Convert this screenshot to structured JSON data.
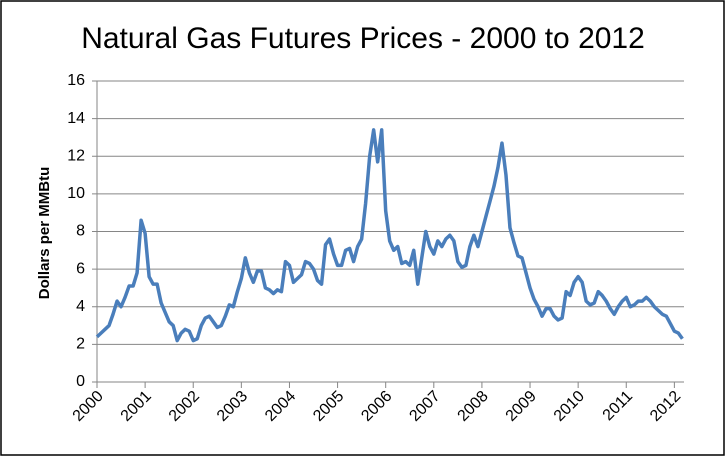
{
  "chart_data": {
    "type": "line",
    "title": "Natural Gas Futures Prices - 2000 to 2012",
    "y_label": "Dollars per MMBtu",
    "color": "#4a7ebb",
    "x": [
      2000,
      2000.083,
      2000.167,
      2000.25,
      2000.333,
      2000.417,
      2000.5,
      2000.583,
      2000.667,
      2000.75,
      2000.833,
      2000.917,
      2001,
      2001.083,
      2001.167,
      2001.25,
      2001.333,
      2001.417,
      2001.5,
      2001.583,
      2001.667,
      2001.75,
      2001.833,
      2001.917,
      2002,
      2002.083,
      2002.167,
      2002.25,
      2002.333,
      2002.417,
      2002.5,
      2002.583,
      2002.667,
      2002.75,
      2002.833,
      2002.917,
      2003,
      2003.083,
      2003.167,
      2003.25,
      2003.333,
      2003.417,
      2003.5,
      2003.583,
      2003.667,
      2003.75,
      2003.833,
      2003.917,
      2004,
      2004.083,
      2004.167,
      2004.25,
      2004.333,
      2004.417,
      2004.5,
      2004.583,
      2004.667,
      2004.75,
      2004.833,
      2004.917,
      2005,
      2005.083,
      2005.167,
      2005.25,
      2005.333,
      2005.417,
      2005.5,
      2005.583,
      2005.667,
      2005.75,
      2005.833,
      2005.917,
      2006,
      2006.083,
      2006.167,
      2006.25,
      2006.333,
      2006.417,
      2006.5,
      2006.583,
      2006.667,
      2006.75,
      2006.833,
      2006.917,
      2007,
      2007.083,
      2007.167,
      2007.25,
      2007.333,
      2007.417,
      2007.5,
      2007.583,
      2007.667,
      2007.75,
      2007.833,
      2007.917,
      2008,
      2008.083,
      2008.167,
      2008.25,
      2008.333,
      2008.417,
      2008.5,
      2008.583,
      2008.667,
      2008.75,
      2008.833,
      2008.917,
      2009,
      2009.083,
      2009.167,
      2009.25,
      2009.333,
      2009.417,
      2009.5,
      2009.583,
      2009.667,
      2009.75,
      2009.833,
      2009.917,
      2010,
      2010.083,
      2010.167,
      2010.25,
      2010.333,
      2010.417,
      2010.5,
      2010.583,
      2010.667,
      2010.75,
      2010.833,
      2010.917,
      2011,
      2011.083,
      2011.167,
      2011.25,
      2011.333,
      2011.417,
      2011.5,
      2011.583,
      2011.667,
      2011.75,
      2011.833,
      2011.917,
      2012,
      2012.083,
      2012.167
    ],
    "values": [
      2.4,
      2.6,
      2.8,
      3.0,
      3.6,
      4.3,
      4.0,
      4.5,
      5.1,
      5.1,
      5.8,
      8.6,
      7.9,
      5.6,
      5.2,
      5.2,
      4.2,
      3.7,
      3.2,
      3.0,
      2.2,
      2.6,
      2.8,
      2.7,
      2.2,
      2.3,
      3.0,
      3.4,
      3.5,
      3.2,
      2.9,
      3.0,
      3.5,
      4.1,
      4.0,
      4.8,
      5.5,
      6.6,
      5.8,
      5.3,
      5.9,
      5.9,
      5.0,
      4.9,
      4.7,
      4.9,
      4.8,
      6.4,
      6.2,
      5.3,
      5.5,
      5.7,
      6.4,
      6.3,
      6.0,
      5.4,
      5.2,
      7.3,
      7.6,
      6.8,
      6.2,
      6.2,
      7.0,
      7.1,
      6.4,
      7.2,
      7.6,
      9.5,
      12.0,
      13.4,
      11.7,
      13.4,
      9.1,
      7.5,
      7.0,
      7.2,
      6.3,
      6.4,
      6.2,
      7.0,
      5.2,
      6.6,
      8.0,
      7.2,
      6.8,
      7.5,
      7.2,
      7.6,
      7.8,
      7.5,
      6.4,
      6.1,
      6.2,
      7.2,
      7.8,
      7.2,
      8.0,
      8.8,
      9.6,
      10.4,
      11.4,
      12.7,
      11.0,
      8.2,
      7.4,
      6.7,
      6.6,
      5.8,
      5.0,
      4.4,
      4.0,
      3.5,
      3.9,
      3.9,
      3.5,
      3.3,
      3.4,
      4.8,
      4.6,
      5.3,
      5.6,
      5.3,
      4.3,
      4.1,
      4.2,
      4.8,
      4.6,
      4.3,
      3.9,
      3.6,
      4.0,
      4.3,
      4.5,
      4.0,
      4.1,
      4.3,
      4.3,
      4.5,
      4.3,
      4.0,
      3.8,
      3.6,
      3.5,
      3.1,
      2.7,
      2.6,
      2.3
    ],
    "xlim": [
      2000,
      2012.2
    ],
    "xticks": [
      2000,
      2001,
      2002,
      2003,
      2004,
      2005,
      2006,
      2007,
      2008,
      2009,
      2010,
      2011,
      2012
    ],
    "ylim": [
      0,
      16
    ],
    "yticks": [
      0,
      2,
      4,
      6,
      8,
      10,
      12,
      14,
      16
    ],
    "grid": true
  }
}
